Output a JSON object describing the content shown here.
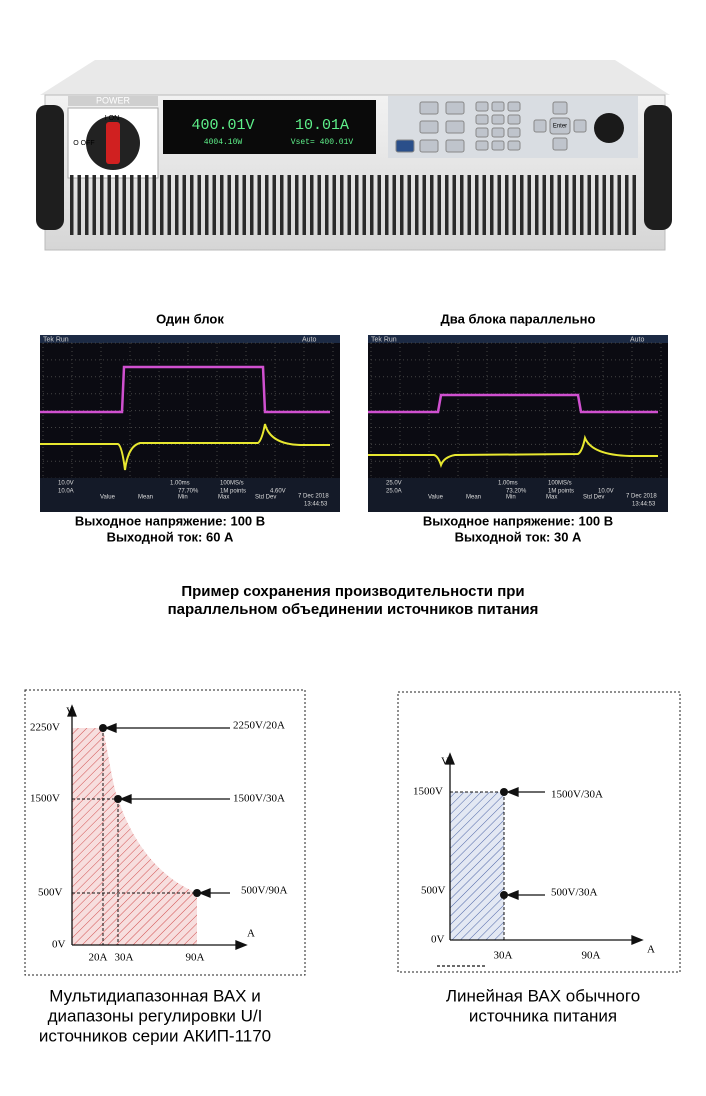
{
  "device": {
    "power": "POWER",
    "switch_on": "I ON",
    "switch_off": "O OFF",
    "voltage": "400.01V",
    "current": "10.01A",
    "power_reading": "4004.10W",
    "vset": "Vset= 400.01V",
    "enter": "Enter"
  },
  "scopes": [
    {
      "title": "Один блок",
      "status": [
        "Tek Run",
        "Auto"
      ],
      "readouts": [
        "10.0V",
        "10.0A",
        "1.00ms",
        "100MS/s",
        "1M points",
        "77.70%",
        "4.60V"
      ],
      "stats_header": [
        "Value",
        "Mean",
        "Min",
        "Max",
        "Std Dev"
      ],
      "date": "7 Dec 2018",
      "time": "13:44:53",
      "caption": [
        "Выходное напряжение: 100 В",
        "Выходной ток: 60 А"
      ]
    },
    {
      "title": "Два блока параллельно",
      "status": [
        "Tek Run",
        "Auto"
      ],
      "readouts": [
        "25.0V",
        "25.0A",
        "1.00ms",
        "100MS/s",
        "1M points",
        "73.20%",
        "10.0V"
      ],
      "stats_header": [
        "Value",
        "Mean",
        "Min",
        "Max",
        "Std Dev"
      ],
      "date": "7 Dec 2018",
      "time": "13:44:53",
      "caption": [
        "Выходное напряжение: 100 В",
        "Выходной ток: 30 А"
      ]
    }
  ],
  "summary": [
    "Пример сохранения производительности при",
    "параллельном объединении источников питания"
  ],
  "diagrams": [
    {
      "axis_y": "V",
      "axis_x": "A",
      "y_labels": [
        "2250V",
        "1500V",
        "500V",
        "0V"
      ],
      "x_labels": [
        "20A",
        "30A",
        "90A"
      ],
      "points": [
        "2250V/20A",
        "1500V/30A",
        "500V/90A"
      ],
      "caption": [
        "Мультидиапазонная ВАХ и",
        "диапазоны регулировки U/I",
        "источников серии АКИП-1170"
      ]
    },
    {
      "axis_y": "V",
      "axis_x": "A",
      "y_labels": [
        "1500V",
        "500V",
        "0V"
      ],
      "x_labels": [
        "30A",
        "90A"
      ],
      "points": [
        "1500V/30A",
        "500V/30A"
      ],
      "caption": [
        "Линейная ВАХ обычного",
        "источника питания"
      ]
    }
  ]
}
